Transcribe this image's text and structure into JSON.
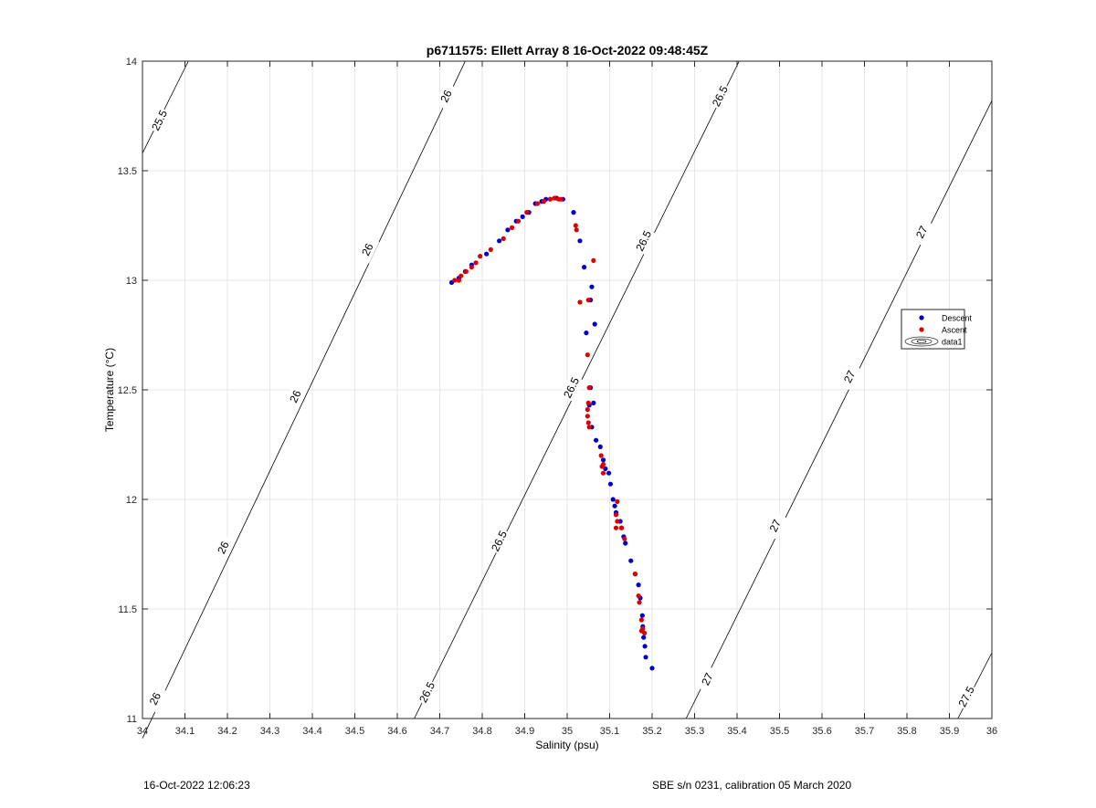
{
  "chart_data": {
    "type": "scatter",
    "title": "p6711575: Ellett Array 8 16-Oct-2022 09:48:45Z",
    "xlabel": "Salinity (psu)",
    "ylabel": "Temperature (°C)",
    "xlim": [
      34,
      36
    ],
    "ylim": [
      11,
      14
    ],
    "xticks": [
      34,
      34.1,
      34.2,
      34.3,
      34.4,
      34.5,
      34.6,
      34.7,
      34.8,
      34.9,
      35,
      35.1,
      35.2,
      35.3,
      35.4,
      35.5,
      35.6,
      35.7,
      35.8,
      35.9,
      36
    ],
    "xtick_labels": [
      "34",
      "34.1",
      "34.2",
      "34.3",
      "34.4",
      "34.5",
      "34.6",
      "34.7",
      "34.8",
      "34.9",
      "35",
      "35.1",
      "35.2",
      "35.3",
      "35.4",
      "35.5",
      "35.6",
      "35.7",
      "35.8",
      "35.9",
      "36"
    ],
    "yticks": [
      11,
      11.5,
      12,
      12.5,
      13,
      13.5,
      14
    ],
    "ytick_labels": [
      "11",
      "11.5",
      "12",
      "12.5",
      "13",
      "13.5",
      "14"
    ],
    "grid": true,
    "legend_position": "right-middle",
    "legend": [
      "Descent",
      "Ascent",
      "data1"
    ],
    "colors": {
      "Descent": "#0000cc",
      "Ascent": "#dd0000",
      "contour": "#000000",
      "grid": "#e6e6e6"
    },
    "series": [
      {
        "name": "Descent",
        "points": [
          [
            35.2,
            11.23
          ],
          [
            35.185,
            11.28
          ],
          [
            35.183,
            11.33
          ],
          [
            35.18,
            11.37
          ],
          [
            35.178,
            11.42
          ],
          [
            35.177,
            11.47
          ],
          [
            35.172,
            11.55
          ],
          [
            35.168,
            11.61
          ],
          [
            35.16,
            11.66
          ],
          [
            35.15,
            11.72
          ],
          [
            35.137,
            11.8
          ],
          [
            35.133,
            11.83
          ],
          [
            35.128,
            11.87
          ],
          [
            35.125,
            11.9
          ],
          [
            35.115,
            11.94
          ],
          [
            35.112,
            11.97
          ],
          [
            35.108,
            12.0
          ],
          [
            35.102,
            12.07
          ],
          [
            35.098,
            12.12
          ],
          [
            35.09,
            12.14
          ],
          [
            35.085,
            12.18
          ],
          [
            35.078,
            12.24
          ],
          [
            35.068,
            12.27
          ],
          [
            35.058,
            12.33
          ],
          [
            35.062,
            12.44
          ],
          [
            35.055,
            12.51
          ],
          [
            35.052,
            12.43
          ],
          [
            35.045,
            12.76
          ],
          [
            35.065,
            12.8
          ],
          [
            35.058,
            12.97
          ],
          [
            35.055,
            12.91
          ],
          [
            35.04,
            13.06
          ],
          [
            35.03,
            13.18
          ],
          [
            35.015,
            13.31
          ],
          [
            34.99,
            13.37
          ],
          [
            34.975,
            13.375
          ],
          [
            34.96,
            13.37
          ],
          [
            34.95,
            13.37
          ],
          [
            34.94,
            13.36
          ],
          [
            34.925,
            13.35
          ],
          [
            34.91,
            13.31
          ],
          [
            34.895,
            13.29
          ],
          [
            34.88,
            13.27
          ],
          [
            34.86,
            13.23
          ],
          [
            34.84,
            13.18
          ],
          [
            34.81,
            13.12
          ],
          [
            34.775,
            13.07
          ],
          [
            34.76,
            13.04
          ],
          [
            34.745,
            13.01
          ],
          [
            34.728,
            12.99
          ]
        ]
      },
      {
        "name": "Ascent",
        "points": [
          [
            34.735,
            13.0
          ],
          [
            34.745,
            13.0
          ],
          [
            34.75,
            13.02
          ],
          [
            34.762,
            13.04
          ],
          [
            34.775,
            13.06
          ],
          [
            34.785,
            13.08
          ],
          [
            34.795,
            13.11
          ],
          [
            34.82,
            13.14
          ],
          [
            34.85,
            13.19
          ],
          [
            34.87,
            13.24
          ],
          [
            34.885,
            13.27
          ],
          [
            34.905,
            13.31
          ],
          [
            34.93,
            13.35
          ],
          [
            34.945,
            13.36
          ],
          [
            34.96,
            13.37
          ],
          [
            34.97,
            13.375
          ],
          [
            34.98,
            13.37
          ],
          [
            34.985,
            13.37
          ],
          [
            35.02,
            13.25
          ],
          [
            35.022,
            13.23
          ],
          [
            35.062,
            13.09
          ],
          [
            35.03,
            12.9
          ],
          [
            35.05,
            12.91
          ],
          [
            35.048,
            12.66
          ],
          [
            35.052,
            12.51
          ],
          [
            35.05,
            12.44
          ],
          [
            35.048,
            12.41
          ],
          [
            35.048,
            12.38
          ],
          [
            35.05,
            12.35
          ],
          [
            35.052,
            12.33
          ],
          [
            35.08,
            12.2
          ],
          [
            35.085,
            12.16
          ],
          [
            35.082,
            12.15
          ],
          [
            35.085,
            12.12
          ],
          [
            35.118,
            11.99
          ],
          [
            35.115,
            11.93
          ],
          [
            35.118,
            11.9
          ],
          [
            35.115,
            11.87
          ],
          [
            35.128,
            11.87
          ],
          [
            35.135,
            11.82
          ],
          [
            35.16,
            11.66
          ],
          [
            35.168,
            11.56
          ],
          [
            35.17,
            11.53
          ],
          [
            35.175,
            11.45
          ],
          [
            35.178,
            11.41
          ],
          [
            35.182,
            11.39
          ],
          [
            35.175,
            11.4
          ]
        ]
      }
    ],
    "density_contours": [
      {
        "label": "25.5",
        "line": [
          [
            34.0,
            13.58
          ],
          [
            34.108,
            14.0
          ]
        ],
        "label_positions": [
          [
            34.04,
            13.73
          ]
        ]
      },
      {
        "label": "26",
        "line": [
          [
            34.0,
            10.91
          ],
          [
            34.76,
            14.0
          ]
        ],
        "label_positions": [
          [
            34.03,
            11.09
          ],
          [
            34.19,
            11.78
          ],
          [
            34.36,
            12.47
          ],
          [
            34.53,
            13.14
          ],
          [
            34.715,
            13.84
          ]
        ]
      },
      {
        "label": "26.5",
        "line": [
          [
            34.64,
            11.0
          ],
          [
            35.405,
            14.0
          ]
        ],
        "label_positions": [
          [
            34.67,
            11.12
          ],
          [
            34.84,
            11.81
          ],
          [
            35.01,
            12.51
          ],
          [
            35.18,
            13.18
          ],
          [
            35.36,
            13.84
          ]
        ]
      },
      {
        "label": "27",
        "line": [
          [
            35.28,
            11.0
          ],
          [
            36.0,
            13.82
          ]
        ],
        "label_positions": [
          [
            35.33,
            11.18
          ],
          [
            35.49,
            11.88
          ],
          [
            35.665,
            12.56
          ],
          [
            35.835,
            13.22
          ]
        ]
      },
      {
        "label": "27.5",
        "line": [
          [
            35.92,
            11.0
          ],
          [
            36.0,
            11.3
          ]
        ],
        "label_positions": [
          [
            35.94,
            11.1
          ]
        ]
      }
    ]
  },
  "footer": {
    "left": "16-Oct-2022 12:06:23",
    "right": "SBE s/n 0231, calibration 05 March 2020"
  }
}
